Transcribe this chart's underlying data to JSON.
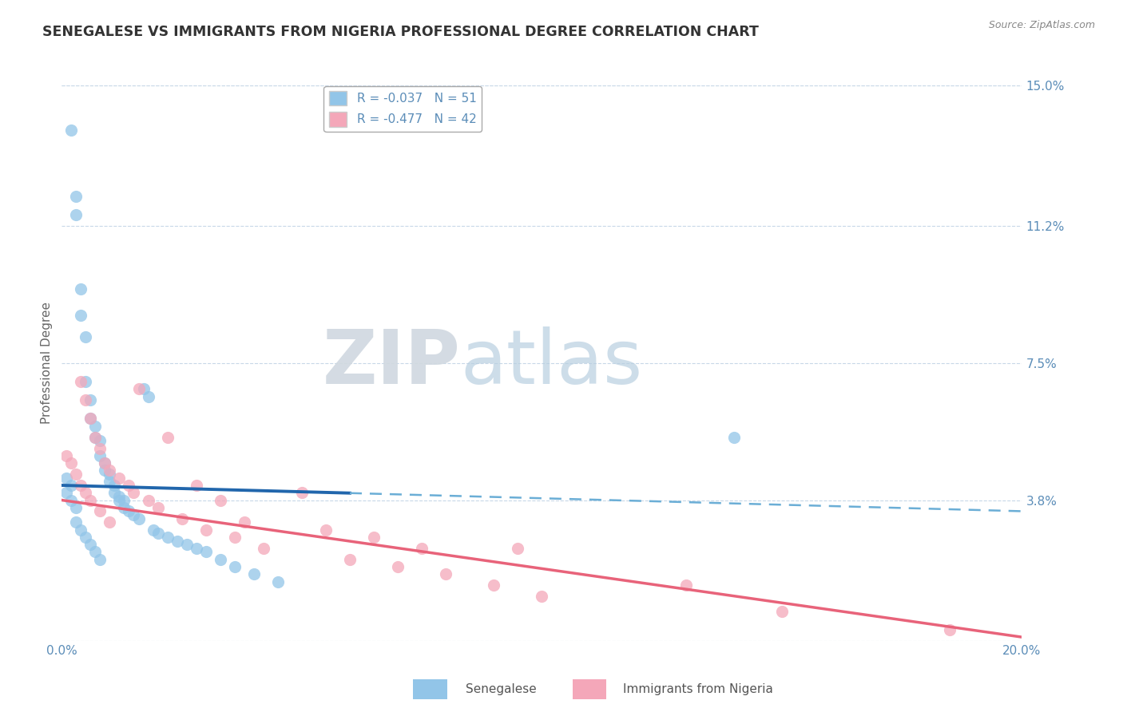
{
  "title": "SENEGALESE VS IMMIGRANTS FROM NIGERIA PROFESSIONAL DEGREE CORRELATION CHART",
  "source_text": "Source: ZipAtlas.com",
  "xlabel": "",
  "ylabel": "Professional Degree",
  "legend_label1": "Senegalese",
  "legend_label2": "Immigrants from Nigeria",
  "r1": -0.037,
  "n1": 51,
  "r2": -0.477,
  "n2": 42,
  "color1": "#92c5e8",
  "color2": "#f4a7b9",
  "trendline1_solid_color": "#2166ac",
  "trendline1_dash_color": "#6baed6",
  "trendline2_color": "#e8637a",
  "xmin": 0.0,
  "xmax": 0.2,
  "ymin": 0.0,
  "ymax": 0.15,
  "yticks": [
    0.0,
    0.038,
    0.075,
    0.112,
    0.15
  ],
  "ytick_labels": [
    "",
    "3.8%",
    "7.5%",
    "11.2%",
    "15.0%"
  ],
  "xticks": [
    0.0,
    0.05,
    0.1,
    0.15,
    0.2
  ],
  "xtick_labels": [
    "0.0%",
    "",
    "",
    "",
    "20.0%"
  ],
  "watermark_zip": "ZIP",
  "watermark_atlas": "atlas",
  "background_color": "#ffffff",
  "grid_color": "#c8d8e8",
  "title_color": "#333333",
  "axis_color": "#5b8db8",
  "trendline1_solid_end": 0.06,
  "scatter1_x": [
    0.001,
    0.002,
    0.003,
    0.003,
    0.004,
    0.004,
    0.005,
    0.005,
    0.006,
    0.006,
    0.007,
    0.007,
    0.008,
    0.008,
    0.009,
    0.009,
    0.01,
    0.01,
    0.011,
    0.011,
    0.012,
    0.012,
    0.013,
    0.013,
    0.014,
    0.015,
    0.016,
    0.017,
    0.018,
    0.019,
    0.02,
    0.022,
    0.024,
    0.026,
    0.028,
    0.03,
    0.033,
    0.036,
    0.04,
    0.045,
    0.001,
    0.002,
    0.002,
    0.003,
    0.003,
    0.004,
    0.005,
    0.006,
    0.007,
    0.008,
    0.14
  ],
  "scatter1_y": [
    0.04,
    0.138,
    0.12,
    0.115,
    0.095,
    0.088,
    0.082,
    0.07,
    0.065,
    0.06,
    0.058,
    0.055,
    0.054,
    0.05,
    0.048,
    0.046,
    0.045,
    0.043,
    0.042,
    0.04,
    0.039,
    0.038,
    0.038,
    0.036,
    0.035,
    0.034,
    0.033,
    0.068,
    0.066,
    0.03,
    0.029,
    0.028,
    0.027,
    0.026,
    0.025,
    0.024,
    0.022,
    0.02,
    0.018,
    0.016,
    0.044,
    0.042,
    0.038,
    0.036,
    0.032,
    0.03,
    0.028,
    0.026,
    0.024,
    0.022,
    0.055
  ],
  "scatter2_x": [
    0.001,
    0.002,
    0.003,
    0.004,
    0.004,
    0.005,
    0.005,
    0.006,
    0.006,
    0.007,
    0.008,
    0.008,
    0.009,
    0.01,
    0.01,
    0.012,
    0.014,
    0.015,
    0.016,
    0.018,
    0.02,
    0.022,
    0.025,
    0.028,
    0.03,
    0.033,
    0.036,
    0.038,
    0.042,
    0.05,
    0.055,
    0.06,
    0.065,
    0.07,
    0.075,
    0.08,
    0.09,
    0.095,
    0.1,
    0.13,
    0.15,
    0.185
  ],
  "scatter2_y": [
    0.05,
    0.048,
    0.045,
    0.042,
    0.07,
    0.065,
    0.04,
    0.06,
    0.038,
    0.055,
    0.052,
    0.035,
    0.048,
    0.046,
    0.032,
    0.044,
    0.042,
    0.04,
    0.068,
    0.038,
    0.036,
    0.055,
    0.033,
    0.042,
    0.03,
    0.038,
    0.028,
    0.032,
    0.025,
    0.04,
    0.03,
    0.022,
    0.028,
    0.02,
    0.025,
    0.018,
    0.015,
    0.025,
    0.012,
    0.015,
    0.008,
    0.003
  ],
  "trend1_x0": 0.0,
  "trend1_y0": 0.042,
  "trend1_x1": 0.2,
  "trend1_y1": 0.035,
  "trend2_x0": 0.0,
  "trend2_y0": 0.038,
  "trend2_x1": 0.2,
  "trend2_y1": 0.001
}
